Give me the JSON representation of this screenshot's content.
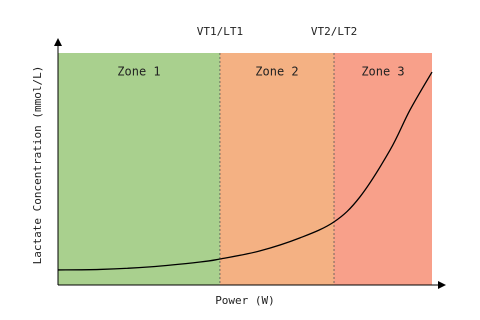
{
  "chart_data": {
    "type": "line",
    "xlabel": "Power (W)",
    "ylabel": "Lactate Concentration (mmol/L)",
    "xlim": [
      0,
      100
    ],
    "ylim": [
      0,
      100
    ],
    "zones": [
      {
        "label": "Zone 1",
        "start": 0,
        "end": 43.3,
        "color": "#a9d08e"
      },
      {
        "label": "Zone 2",
        "start": 43.3,
        "end": 73.8,
        "color": "#f4b183"
      },
      {
        "label": "Zone 3",
        "start": 73.8,
        "end": 100,
        "color": "#f8a08a"
      }
    ],
    "thresholds": [
      {
        "label": "VT1/LT1",
        "value": 43.3
      },
      {
        "label": "VT2/LT2",
        "value": 73.8
      }
    ],
    "series": [
      {
        "color": "#000000",
        "x": [
          0,
          11.2,
          24.6,
          38,
          43.3,
          54,
          64.7,
          73.8,
          80.7,
          88.8,
          94.1,
          100
        ],
        "values": [
          6.5,
          6.7,
          7.8,
          9.9,
          11.2,
          14.7,
          20.3,
          27.2,
          37.9,
          58.2,
          75.4,
          91.8
        ]
      }
    ]
  }
}
